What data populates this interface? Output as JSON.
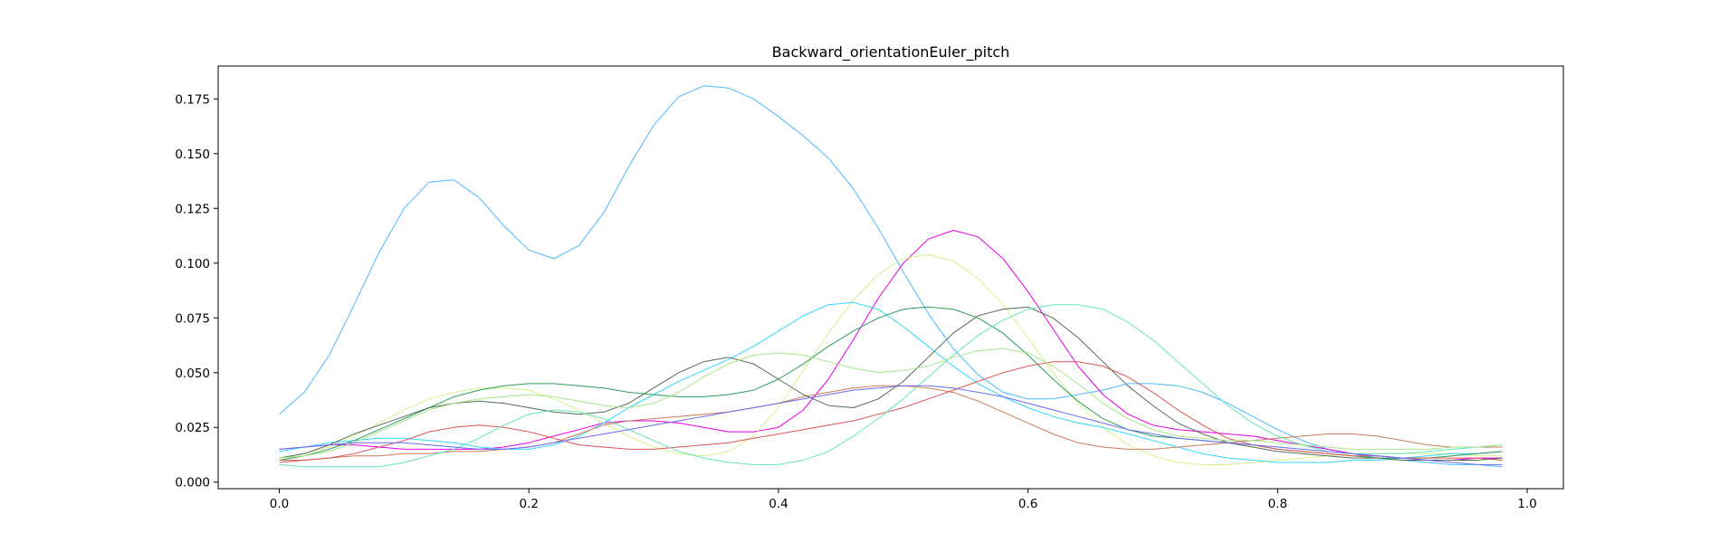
{
  "chart_data": {
    "type": "line",
    "title": "Backward_orientationEuler_pitch",
    "xlabel": "",
    "ylabel": "",
    "xlim": [
      -0.049,
      1.029
    ],
    "ylim": [
      -0.003,
      0.19
    ],
    "grid": false,
    "legend": "none",
    "x": [
      0.0,
      0.02,
      0.04,
      0.06,
      0.08,
      0.1,
      0.12,
      0.14,
      0.16,
      0.18,
      0.2,
      0.22,
      0.24,
      0.26,
      0.28,
      0.3,
      0.32,
      0.34,
      0.36,
      0.38,
      0.4,
      0.42,
      0.44,
      0.46,
      0.48,
      0.5,
      0.52,
      0.54,
      0.56,
      0.58,
      0.6,
      0.62,
      0.64,
      0.66,
      0.68,
      0.7,
      0.72,
      0.74,
      0.76,
      0.78,
      0.8,
      0.82,
      0.84,
      0.86,
      0.88,
      0.9,
      0.92,
      0.94,
      0.96,
      0.98
    ],
    "xticks": [
      "0.0",
      "0.2",
      "0.4",
      "0.6",
      "0.8",
      "1.0"
    ],
    "yticks": [
      "0.000",
      "0.025",
      "0.050",
      "0.075",
      "0.100",
      "0.125",
      "0.150",
      "0.175"
    ],
    "series": [
      {
        "color": "#4db8ff",
        "values": [
          0.031,
          0.041,
          0.058,
          0.081,
          0.105,
          0.125,
          0.137,
          0.138,
          0.13,
          0.117,
          0.106,
          0.102,
          0.108,
          0.123,
          0.144,
          0.163,
          0.176,
          0.181,
          0.18,
          0.175,
          0.167,
          0.158,
          0.148,
          0.134,
          0.116,
          0.096,
          0.077,
          0.061,
          0.049,
          0.041,
          0.038,
          0.038,
          0.04,
          0.042,
          0.045,
          0.045,
          0.044,
          0.041,
          0.036,
          0.03,
          0.024,
          0.019,
          0.015,
          0.013,
          0.011,
          0.01,
          0.009,
          0.008,
          0.008,
          0.007
        ]
      },
      {
        "color": "#e600e6",
        "values": [
          0.015,
          0.016,
          0.017,
          0.017,
          0.016,
          0.015,
          0.015,
          0.015,
          0.015,
          0.016,
          0.018,
          0.021,
          0.024,
          0.027,
          0.028,
          0.028,
          0.027,
          0.025,
          0.023,
          0.023,
          0.025,
          0.033,
          0.047,
          0.065,
          0.084,
          0.1,
          0.111,
          0.115,
          0.112,
          0.102,
          0.087,
          0.07,
          0.053,
          0.04,
          0.031,
          0.026,
          0.024,
          0.023,
          0.022,
          0.021,
          0.019,
          0.017,
          0.015,
          0.013,
          0.012,
          0.011,
          0.01,
          0.01,
          0.011,
          0.011
        ]
      },
      {
        "color": "#d4f28a",
        "values": [
          0.011,
          0.013,
          0.016,
          0.021,
          0.027,
          0.033,
          0.038,
          0.041,
          0.043,
          0.043,
          0.042,
          0.038,
          0.033,
          0.027,
          0.021,
          0.016,
          0.013,
          0.012,
          0.014,
          0.021,
          0.034,
          0.051,
          0.068,
          0.083,
          0.095,
          0.102,
          0.104,
          0.101,
          0.093,
          0.081,
          0.066,
          0.05,
          0.036,
          0.025,
          0.017,
          0.012,
          0.009,
          0.008,
          0.008,
          0.009,
          0.01,
          0.011,
          0.012,
          0.013,
          0.013,
          0.013,
          0.013,
          0.013,
          0.012,
          0.012
        ]
      },
      {
        "color": "#33d6ff",
        "values": [
          0.014,
          0.016,
          0.018,
          0.019,
          0.02,
          0.02,
          0.019,
          0.018,
          0.016,
          0.015,
          0.015,
          0.017,
          0.021,
          0.027,
          0.034,
          0.04,
          0.046,
          0.051,
          0.056,
          0.062,
          0.069,
          0.076,
          0.081,
          0.082,
          0.079,
          0.071,
          0.062,
          0.053,
          0.045,
          0.039,
          0.034,
          0.03,
          0.027,
          0.025,
          0.022,
          0.019,
          0.016,
          0.013,
          0.011,
          0.01,
          0.009,
          0.009,
          0.009,
          0.01,
          0.01,
          0.011,
          0.012,
          0.013,
          0.013,
          0.014
        ]
      },
      {
        "color": "#2e9e5a",
        "values": [
          0.01,
          0.012,
          0.015,
          0.019,
          0.024,
          0.029,
          0.034,
          0.039,
          0.042,
          0.044,
          0.045,
          0.045,
          0.044,
          0.043,
          0.041,
          0.04,
          0.039,
          0.039,
          0.04,
          0.042,
          0.047,
          0.054,
          0.062,
          0.069,
          0.075,
          0.079,
          0.08,
          0.079,
          0.075,
          0.068,
          0.058,
          0.047,
          0.037,
          0.029,
          0.024,
          0.021,
          0.02,
          0.019,
          0.018,
          0.017,
          0.015,
          0.014,
          0.013,
          0.012,
          0.011,
          0.011,
          0.011,
          0.012,
          0.013,
          0.014
        ]
      },
      {
        "color": "#cc7a5c",
        "values": [
          0.01,
          0.01,
          0.011,
          0.012,
          0.012,
          0.013,
          0.013,
          0.014,
          0.014,
          0.015,
          0.016,
          0.018,
          0.022,
          0.026,
          0.028,
          0.029,
          0.03,
          0.031,
          0.032,
          0.034,
          0.036,
          0.039,
          0.041,
          0.043,
          0.044,
          0.044,
          0.043,
          0.041,
          0.037,
          0.032,
          0.027,
          0.022,
          0.018,
          0.016,
          0.015,
          0.015,
          0.016,
          0.017,
          0.018,
          0.019,
          0.02,
          0.021,
          0.022,
          0.022,
          0.021,
          0.019,
          0.017,
          0.016,
          0.016,
          0.016
        ]
      },
      {
        "color": "#dd5555",
        "values": [
          0.009,
          0.01,
          0.011,
          0.013,
          0.016,
          0.019,
          0.023,
          0.025,
          0.026,
          0.025,
          0.023,
          0.02,
          0.017,
          0.016,
          0.015,
          0.015,
          0.016,
          0.017,
          0.018,
          0.02,
          0.022,
          0.024,
          0.026,
          0.028,
          0.031,
          0.034,
          0.038,
          0.042,
          0.046,
          0.05,
          0.053,
          0.055,
          0.055,
          0.053,
          0.048,
          0.041,
          0.033,
          0.026,
          0.02,
          0.017,
          0.015,
          0.014,
          0.013,
          0.012,
          0.012,
          0.011,
          0.011,
          0.011,
          0.011,
          0.01
        ]
      },
      {
        "color": "#556b55",
        "values": [
          0.011,
          0.013,
          0.017,
          0.022,
          0.026,
          0.03,
          0.034,
          0.036,
          0.037,
          0.036,
          0.034,
          0.032,
          0.031,
          0.032,
          0.036,
          0.043,
          0.05,
          0.055,
          0.057,
          0.054,
          0.047,
          0.04,
          0.035,
          0.034,
          0.038,
          0.046,
          0.057,
          0.068,
          0.076,
          0.079,
          0.08,
          0.075,
          0.066,
          0.055,
          0.044,
          0.035,
          0.027,
          0.022,
          0.018,
          0.016,
          0.014,
          0.013,
          0.012,
          0.011,
          0.011,
          0.01,
          0.01,
          0.01,
          0.01,
          0.011
        ]
      },
      {
        "color": "#66e6b3",
        "values": [
          0.008,
          0.007,
          0.007,
          0.007,
          0.007,
          0.009,
          0.012,
          0.015,
          0.02,
          0.026,
          0.031,
          0.033,
          0.032,
          0.029,
          0.024,
          0.019,
          0.014,
          0.011,
          0.009,
          0.008,
          0.008,
          0.01,
          0.014,
          0.021,
          0.029,
          0.038,
          0.048,
          0.058,
          0.067,
          0.074,
          0.079,
          0.081,
          0.081,
          0.079,
          0.073,
          0.065,
          0.055,
          0.045,
          0.035,
          0.027,
          0.021,
          0.017,
          0.014,
          0.013,
          0.013,
          0.013,
          0.014,
          0.015,
          0.016,
          0.017
        ]
      },
      {
        "color": "#a6e68a",
        "values": [
          0.011,
          0.012,
          0.014,
          0.018,
          0.023,
          0.028,
          0.033,
          0.036,
          0.038,
          0.039,
          0.04,
          0.039,
          0.037,
          0.035,
          0.034,
          0.036,
          0.041,
          0.048,
          0.054,
          0.058,
          0.059,
          0.058,
          0.055,
          0.052,
          0.05,
          0.051,
          0.053,
          0.057,
          0.06,
          0.061,
          0.059,
          0.053,
          0.045,
          0.036,
          0.029,
          0.024,
          0.021,
          0.02,
          0.019,
          0.019,
          0.018,
          0.017,
          0.016,
          0.015,
          0.015,
          0.015,
          0.015,
          0.016,
          0.016,
          0.017
        ]
      },
      {
        "color": "#6b6bf2",
        "values": [
          0.015,
          0.016,
          0.017,
          0.018,
          0.018,
          0.018,
          0.017,
          0.016,
          0.015,
          0.015,
          0.016,
          0.018,
          0.02,
          0.022,
          0.024,
          0.026,
          0.028,
          0.03,
          0.032,
          0.034,
          0.036,
          0.038,
          0.04,
          0.042,
          0.043,
          0.044,
          0.044,
          0.043,
          0.041,
          0.039,
          0.036,
          0.033,
          0.03,
          0.027,
          0.024,
          0.022,
          0.02,
          0.019,
          0.018,
          0.017,
          0.016,
          0.015,
          0.014,
          0.013,
          0.012,
          0.011,
          0.01,
          0.009,
          0.008,
          0.008
        ]
      }
    ]
  }
}
